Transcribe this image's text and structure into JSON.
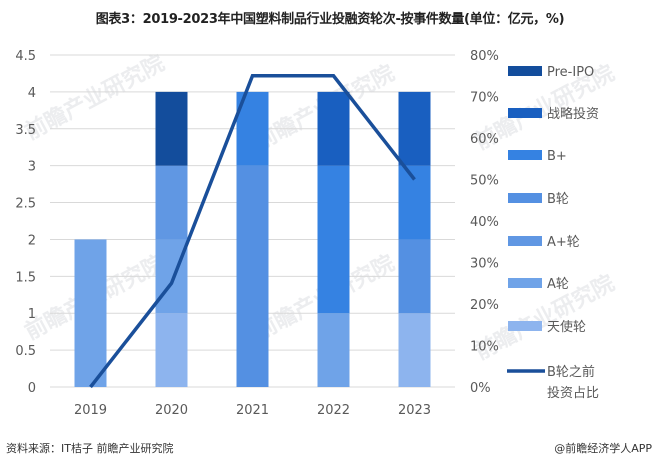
{
  "title": "图表3：2019-2023年中国塑料制品行业投融资轮次-按事件数量(单位：亿元，%)",
  "footer": {
    "source": "资料来源：IT桔子 前瞻产业研究院",
    "credit": "@前瞻经济学人APP"
  },
  "watermark": "前瞻产业研究院",
  "chart_data": {
    "type": "bar",
    "stacked": true,
    "title": "图表3：2019-2023年中国塑料制品行业投融资轮次-按事件数量(单位：亿元，%)",
    "categories": [
      "2019",
      "2020",
      "2021",
      "2022",
      "2023"
    ],
    "series": [
      {
        "name": "天使轮",
        "type": "bar",
        "color": "#8db4ee",
        "values": [
          0,
          1,
          0,
          0,
          1
        ]
      },
      {
        "name": "A轮",
        "type": "bar",
        "color": "#6fa3e8",
        "values": [
          2,
          1,
          0,
          1,
          0
        ]
      },
      {
        "name": "A+轮",
        "type": "bar",
        "color": "#6097e3",
        "values": [
          0,
          1,
          0,
          0,
          0
        ]
      },
      {
        "name": "B轮",
        "type": "bar",
        "color": "#5490e2",
        "values": [
          0,
          0,
          3,
          0,
          1
        ]
      },
      {
        "name": "B+",
        "type": "bar",
        "color": "#3582e2",
        "values": [
          0,
          0,
          1,
          2,
          1
        ]
      },
      {
        "name": "战略投资",
        "type": "bar",
        "color": "#195fc0",
        "values": [
          0,
          0,
          0,
          1,
          1
        ]
      },
      {
        "name": "Pre-IPO",
        "type": "bar",
        "color": "#134d9c",
        "values": [
          0,
          1,
          0,
          0,
          0
        ]
      },
      {
        "name": "B轮之前投资占比",
        "type": "line",
        "axis": "right",
        "color": "#1a4f9a",
        "values": [
          0,
          25,
          75,
          75,
          50
        ]
      }
    ],
    "legend_order": [
      "Pre-IPO",
      "战略投资",
      "B+",
      "B轮",
      "A+轮",
      "A轮",
      "天使轮",
      "B轮之前投资占比"
    ],
    "left_axis": {
      "ticks": [
        "0",
        "0.5",
        "1",
        "1.5",
        "2",
        "2.5",
        "3",
        "3.5",
        "4",
        "4.5"
      ],
      "ylim": [
        0,
        4.5
      ]
    },
    "right_axis": {
      "ticks": [
        "0%",
        "10%",
        "20%",
        "30%",
        "40%",
        "50%",
        "60%",
        "70%",
        "80%"
      ],
      "ylim": [
        0,
        80
      ]
    },
    "xlabel": "",
    "ylabel": "",
    "grid": true,
    "legend_position": "right"
  }
}
